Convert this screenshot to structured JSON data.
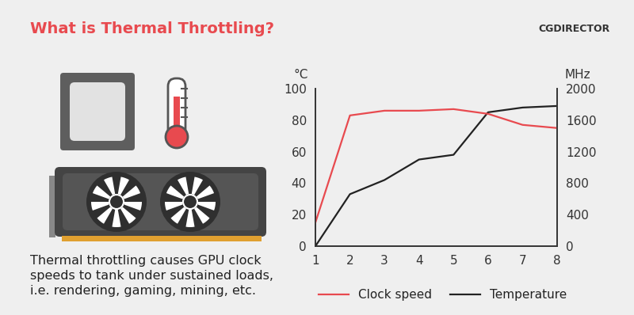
{
  "chart_data": {
    "type": "line",
    "title": "What is Thermal Throttling?",
    "logo": "CGDIRECTOR",
    "caption": "Thermal throttling causes GPU clock\nspeeds to tank under sustained loads,\ni.e. rendering, gaming, mining, etc.",
    "x": [
      1,
      2,
      3,
      4,
      5,
      6,
      7,
      8
    ],
    "xlim": [
      1,
      8
    ],
    "xticks": [
      1,
      2,
      3,
      4,
      5,
      6,
      7,
      8
    ],
    "y_label": "°C",
    "ylim": [
      0,
      100
    ],
    "yticks": [
      0,
      20,
      40,
      60,
      80,
      100
    ],
    "y2_label": "MHz",
    "y2lim": [
      0,
      2000
    ],
    "y2ticks": [
      0,
      400,
      800,
      1200,
      1600,
      2000
    ],
    "legend": "lower left",
    "series": [
      {
        "name": "Clock speed",
        "color": "#e84a4f",
        "axis": "y2",
        "values": [
          300,
          1660,
          1720,
          1720,
          1740,
          1680,
          1540,
          1500
        ]
      },
      {
        "name": "Temperature",
        "color": "#222222",
        "values": [
          0,
          33,
          42,
          55,
          58,
          85,
          88,
          89
        ]
      }
    ]
  }
}
